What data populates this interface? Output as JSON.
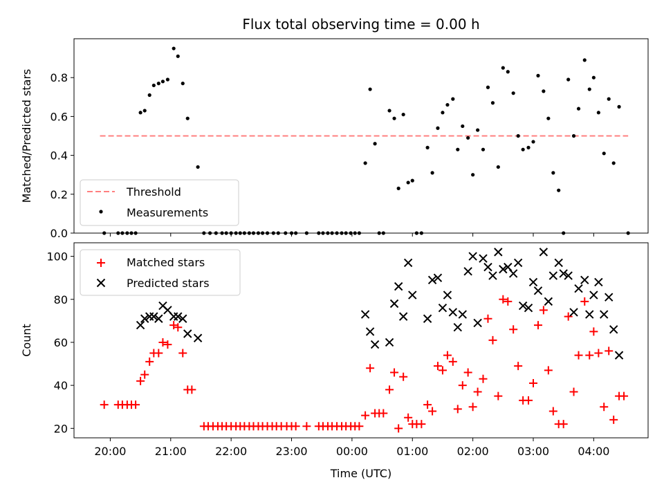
{
  "title": "Flux total observing time = 0.00 h",
  "colors": {
    "threshold": "#ff7f7f",
    "measurements": "#000000",
    "matched": "#ff0000",
    "predicted": "#000000"
  },
  "chart_data": [
    {
      "type": "scatter",
      "ylabel": "Matched/Predicted stars",
      "xlabel": "",
      "xlim": [
        19.4,
        28.9
      ],
      "ylim": [
        0,
        1.0
      ],
      "yticks": [
        0.0,
        0.2,
        0.4,
        0.6,
        0.8
      ],
      "ytick_labels": [
        "0.0",
        "0.2",
        "0.4",
        "0.6",
        "0.8"
      ],
      "legend_position": "lower-left",
      "threshold": {
        "name": "Threshold",
        "y": 0.5,
        "x_range": [
          19.83,
          28.57
        ]
      },
      "series": [
        {
          "name": "Measurements",
          "points": [
            [
              19.9,
              0.0
            ],
            [
              20.13,
              0.0
            ],
            [
              20.2,
              0.0
            ],
            [
              20.28,
              0.0
            ],
            [
              20.35,
              0.0
            ],
            [
              20.42,
              0.0
            ],
            [
              20.5,
              0.62
            ],
            [
              20.57,
              0.63
            ],
            [
              20.65,
              0.71
            ],
            [
              20.72,
              0.76
            ],
            [
              20.8,
              0.77
            ],
            [
              20.87,
              0.78
            ],
            [
              20.95,
              0.79
            ],
            [
              21.05,
              0.95
            ],
            [
              21.12,
              0.91
            ],
            [
              21.2,
              0.77
            ],
            [
              21.28,
              0.59
            ],
            [
              21.45,
              0.34
            ],
            [
              21.55,
              0.0
            ],
            [
              21.65,
              0.0
            ],
            [
              21.75,
              0.0
            ],
            [
              21.85,
              0.0
            ],
            [
              21.92,
              0.0
            ],
            [
              22.0,
              0.0
            ],
            [
              22.08,
              0.0
            ],
            [
              22.15,
              0.0
            ],
            [
              22.22,
              0.0
            ],
            [
              22.3,
              0.0
            ],
            [
              22.37,
              0.0
            ],
            [
              22.45,
              0.0
            ],
            [
              22.52,
              0.0
            ],
            [
              22.6,
              0.0
            ],
            [
              22.7,
              0.0
            ],
            [
              22.78,
              0.0
            ],
            [
              22.9,
              0.0
            ],
            [
              23.0,
              0.0
            ],
            [
              23.07,
              0.0
            ],
            [
              23.25,
              0.0
            ],
            [
              23.45,
              0.0
            ],
            [
              23.52,
              0.0
            ],
            [
              23.6,
              0.0
            ],
            [
              23.67,
              0.0
            ],
            [
              23.75,
              0.0
            ],
            [
              23.83,
              0.0
            ],
            [
              23.9,
              0.0
            ],
            [
              23.98,
              0.0
            ],
            [
              24.05,
              0.0
            ],
            [
              24.12,
              0.0
            ],
            [
              24.22,
              0.36
            ],
            [
              24.3,
              0.74
            ],
            [
              24.38,
              0.46
            ],
            [
              24.45,
              0.0
            ],
            [
              24.52,
              0.0
            ],
            [
              24.62,
              0.63
            ],
            [
              24.7,
              0.59
            ],
            [
              24.77,
              0.23
            ],
            [
              24.85,
              0.61
            ],
            [
              24.93,
              0.26
            ],
            [
              25.0,
              0.27
            ],
            [
              25.07,
              0.0
            ],
            [
              25.15,
              0.0
            ],
            [
              25.25,
              0.44
            ],
            [
              25.33,
              0.31
            ],
            [
              25.42,
              0.54
            ],
            [
              25.5,
              0.62
            ],
            [
              25.58,
              0.66
            ],
            [
              25.67,
              0.69
            ],
            [
              25.75,
              0.43
            ],
            [
              25.83,
              0.55
            ],
            [
              25.92,
              0.49
            ],
            [
              26.0,
              0.3
            ],
            [
              26.08,
              0.53
            ],
            [
              26.17,
              0.43
            ],
            [
              26.25,
              0.75
            ],
            [
              26.33,
              0.67
            ],
            [
              26.42,
              0.34
            ],
            [
              26.5,
              0.85
            ],
            [
              26.58,
              0.83
            ],
            [
              26.67,
              0.72
            ],
            [
              26.75,
              0.5
            ],
            [
              26.83,
              0.43
            ],
            [
              26.92,
              0.44
            ],
            [
              27.0,
              0.47
            ],
            [
              27.08,
              0.81
            ],
            [
              27.17,
              0.73
            ],
            [
              27.25,
              0.59
            ],
            [
              27.33,
              0.31
            ],
            [
              27.42,
              0.22
            ],
            [
              27.5,
              0.0
            ],
            [
              27.58,
              0.79
            ],
            [
              27.67,
              0.5
            ],
            [
              27.75,
              0.64
            ],
            [
              27.85,
              0.89
            ],
            [
              27.93,
              0.74
            ],
            [
              28.0,
              0.8
            ],
            [
              28.08,
              0.62
            ],
            [
              28.17,
              0.41
            ],
            [
              28.25,
              0.69
            ],
            [
              28.33,
              0.36
            ],
            [
              28.42,
              0.65
            ],
            [
              28.57,
              0.0
            ]
          ]
        }
      ]
    },
    {
      "type": "scatter",
      "ylabel": "Count",
      "xlabel": "Time (UTC)",
      "xlim": [
        19.4,
        28.9
      ],
      "ylim": [
        15.6,
        106.3
      ],
      "yticks": [
        20,
        40,
        60,
        80,
        100
      ],
      "ytick_labels": [
        "20",
        "40",
        "60",
        "80",
        "100"
      ],
      "xticks": [
        20,
        21,
        22,
        23,
        24,
        25,
        26,
        27,
        28
      ],
      "xtick_labels": [
        "20:00",
        "21:00",
        "22:00",
        "23:00",
        "00:00",
        "01:00",
        "02:00",
        "03:00",
        "04:00"
      ],
      "legend_position": "upper-left",
      "series": [
        {
          "name": "Matched stars",
          "marker": "plus",
          "points": [
            [
              19.9,
              31
            ],
            [
              20.13,
              31
            ],
            [
              20.2,
              31
            ],
            [
              20.28,
              31
            ],
            [
              20.35,
              31
            ],
            [
              20.42,
              31
            ],
            [
              20.5,
              42
            ],
            [
              20.57,
              45
            ],
            [
              20.65,
              51
            ],
            [
              20.72,
              55
            ],
            [
              20.8,
              55
            ],
            [
              20.87,
              60
            ],
            [
              20.95,
              59
            ],
            [
              21.05,
              68
            ],
            [
              21.12,
              67
            ],
            [
              21.2,
              55
            ],
            [
              21.28,
              38
            ],
            [
              21.35,
              38
            ],
            [
              21.55,
              21
            ],
            [
              21.62,
              21
            ],
            [
              21.7,
              21
            ],
            [
              21.78,
              21
            ],
            [
              21.85,
              21
            ],
            [
              21.92,
              21
            ],
            [
              22.0,
              21
            ],
            [
              22.08,
              21
            ],
            [
              22.15,
              21
            ],
            [
              22.22,
              21
            ],
            [
              22.3,
              21
            ],
            [
              22.37,
              21
            ],
            [
              22.45,
              21
            ],
            [
              22.52,
              21
            ],
            [
              22.6,
              21
            ],
            [
              22.68,
              21
            ],
            [
              22.75,
              21
            ],
            [
              22.83,
              21
            ],
            [
              22.92,
              21
            ],
            [
              23.0,
              21
            ],
            [
              23.07,
              21
            ],
            [
              23.25,
              21
            ],
            [
              23.45,
              21
            ],
            [
              23.52,
              21
            ],
            [
              23.6,
              21
            ],
            [
              23.67,
              21
            ],
            [
              23.75,
              21
            ],
            [
              23.83,
              21
            ],
            [
              23.9,
              21
            ],
            [
              23.98,
              21
            ],
            [
              24.05,
              21
            ],
            [
              24.12,
              21
            ],
            [
              24.22,
              26
            ],
            [
              24.3,
              48
            ],
            [
              24.38,
              27
            ],
            [
              24.45,
              27
            ],
            [
              24.52,
              27
            ],
            [
              24.62,
              38
            ],
            [
              24.7,
              46
            ],
            [
              24.77,
              20
            ],
            [
              24.85,
              44
            ],
            [
              24.93,
              25
            ],
            [
              25.0,
              22
            ],
            [
              25.07,
              22
            ],
            [
              25.15,
              22
            ],
            [
              25.25,
              31
            ],
            [
              25.33,
              28
            ],
            [
              25.42,
              49
            ],
            [
              25.5,
              47
            ],
            [
              25.58,
              54
            ],
            [
              25.67,
              51
            ],
            [
              25.75,
              29
            ],
            [
              25.83,
              40
            ],
            [
              25.92,
              46
            ],
            [
              26.0,
              30
            ],
            [
              26.08,
              37
            ],
            [
              26.17,
              43
            ],
            [
              26.25,
              71
            ],
            [
              26.33,
              61
            ],
            [
              26.42,
              35
            ],
            [
              26.5,
              80
            ],
            [
              26.58,
              79
            ],
            [
              26.67,
              66
            ],
            [
              26.75,
              49
            ],
            [
              26.83,
              33
            ],
            [
              26.92,
              33
            ],
            [
              27.0,
              41
            ],
            [
              27.08,
              68
            ],
            [
              27.17,
              75
            ],
            [
              27.25,
              47
            ],
            [
              27.33,
              28
            ],
            [
              27.42,
              22
            ],
            [
              27.5,
              22
            ],
            [
              27.58,
              72
            ],
            [
              27.67,
              37
            ],
            [
              27.75,
              54
            ],
            [
              27.85,
              79
            ],
            [
              27.93,
              54
            ],
            [
              28.0,
              65
            ],
            [
              28.08,
              55
            ],
            [
              28.17,
              30
            ],
            [
              28.25,
              56
            ],
            [
              28.33,
              24
            ],
            [
              28.42,
              35
            ],
            [
              28.5,
              35
            ]
          ]
        },
        {
          "name": "Predicted stars",
          "marker": "x",
          "points": [
            [
              20.5,
              68
            ],
            [
              20.57,
              71
            ],
            [
              20.65,
              72
            ],
            [
              20.72,
              72
            ],
            [
              20.8,
              71
            ],
            [
              20.87,
              77
            ],
            [
              20.95,
              75
            ],
            [
              21.05,
              72
            ],
            [
              21.12,
              72
            ],
            [
              21.2,
              71
            ],
            [
              21.28,
              64
            ],
            [
              21.45,
              62
            ],
            [
              24.22,
              73
            ],
            [
              24.3,
              65
            ],
            [
              24.38,
              59
            ],
            [
              24.62,
              60
            ],
            [
              24.7,
              78
            ],
            [
              24.77,
              86
            ],
            [
              24.85,
              72
            ],
            [
              24.93,
              97
            ],
            [
              25.0,
              82
            ],
            [
              25.25,
              71
            ],
            [
              25.33,
              89
            ],
            [
              25.42,
              90
            ],
            [
              25.5,
              76
            ],
            [
              25.58,
              82
            ],
            [
              25.67,
              74
            ],
            [
              25.75,
              67
            ],
            [
              25.83,
              73
            ],
            [
              25.92,
              93
            ],
            [
              26.0,
              100
            ],
            [
              26.08,
              69
            ],
            [
              26.17,
              99
            ],
            [
              26.25,
              95
            ],
            [
              26.33,
              91
            ],
            [
              26.42,
              102
            ],
            [
              26.5,
              94
            ],
            [
              26.58,
              95
            ],
            [
              26.67,
              92
            ],
            [
              26.75,
              97
            ],
            [
              26.83,
              77
            ],
            [
              26.92,
              76
            ],
            [
              27.0,
              88
            ],
            [
              27.08,
              84
            ],
            [
              27.17,
              102
            ],
            [
              27.25,
              79
            ],
            [
              27.33,
              91
            ],
            [
              27.42,
              97
            ],
            [
              27.5,
              92
            ],
            [
              27.58,
              91
            ],
            [
              27.67,
              74
            ],
            [
              27.75,
              85
            ],
            [
              27.85,
              89
            ],
            [
              27.93,
              73
            ],
            [
              28.0,
              82
            ],
            [
              28.08,
              88
            ],
            [
              28.17,
              73
            ],
            [
              28.25,
              81
            ],
            [
              28.33,
              66
            ],
            [
              28.42,
              54
            ]
          ]
        }
      ]
    }
  ]
}
